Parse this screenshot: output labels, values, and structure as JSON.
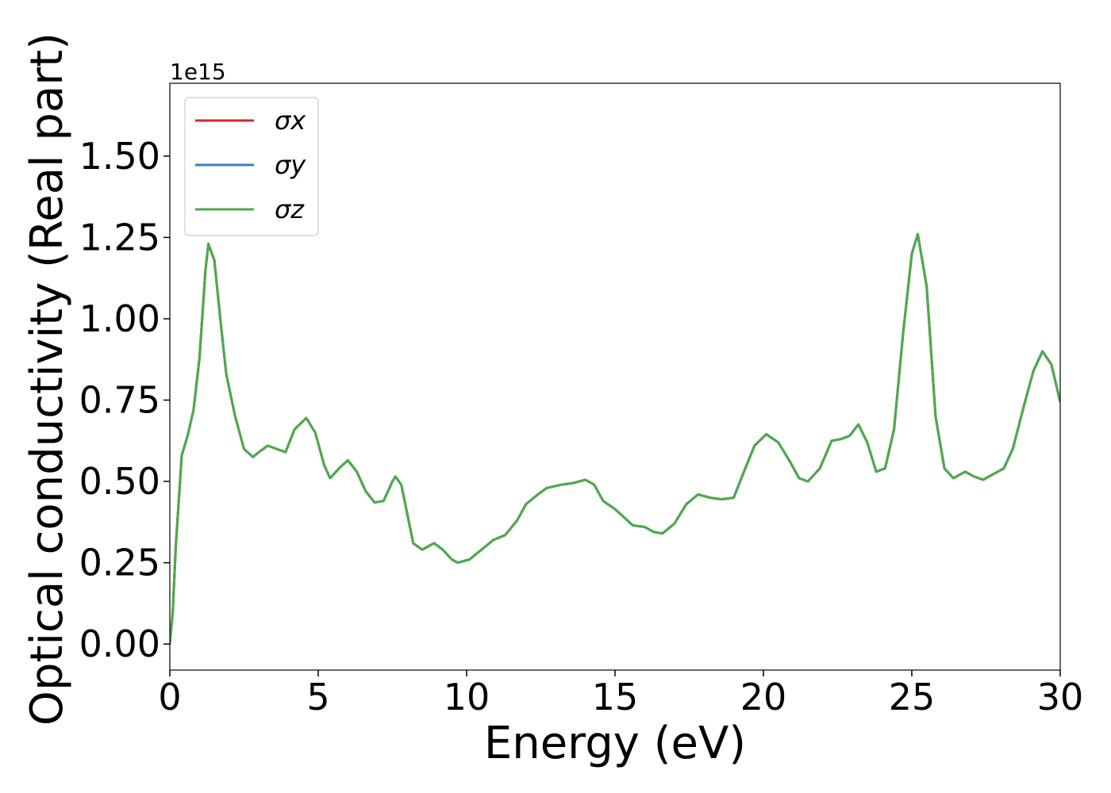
{
  "chart_data": {
    "type": "line",
    "x_label": "Energy (eV)",
    "y_label": "Optical conductivity (Real part)",
    "y_offset_label": "1e15",
    "x": [
      0,
      0.1,
      0.2,
      0.4,
      0.6,
      0.8,
      1.0,
      1.2,
      1.3,
      1.5,
      1.7,
      1.9,
      2.2,
      2.5,
      2.8,
      3.0,
      3.3,
      3.6,
      3.9,
      4.2,
      4.6,
      4.9,
      5.2,
      5.4,
      5.7,
      6.0,
      6.3,
      6.6,
      6.9,
      7.2,
      7.5,
      7.6,
      7.8,
      8.0,
      8.2,
      8.5,
      8.9,
      9.2,
      9.5,
      9.7,
      10.1,
      10.5,
      10.9,
      11.3,
      11.7,
      12.0,
      12.4,
      12.7,
      13.2,
      13.6,
      14.0,
      14.3,
      14.6,
      15.0,
      15.3,
      15.6,
      16.0,
      16.3,
      16.6,
      17.0,
      17.4,
      17.8,
      18.2,
      18.6,
      19.0,
      19.3,
      19.7,
      20.1,
      20.5,
      20.9,
      21.2,
      21.5,
      21.9,
      22.3,
      22.6,
      22.9,
      23.2,
      23.5,
      23.8,
      24.1,
      24.4,
      24.7,
      25.0,
      25.2,
      25.5,
      25.8,
      26.1,
      26.4,
      26.8,
      27.1,
      27.4,
      27.8,
      28.1,
      28.4,
      28.8,
      29.1,
      29.4,
      29.7,
      30.0
    ],
    "series": [
      {
        "name": "σx",
        "color": "#d62728",
        "values": [
          0.0,
          0.1,
          0.3,
          0.58,
          0.64,
          0.72,
          0.88,
          1.15,
          1.23,
          1.18,
          1.0,
          0.83,
          0.7,
          0.6,
          0.575,
          0.59,
          0.61,
          0.6,
          0.59,
          0.66,
          0.695,
          0.65,
          0.55,
          0.51,
          0.54,
          0.565,
          0.53,
          0.47,
          0.435,
          0.44,
          0.5,
          0.515,
          0.49,
          0.4,
          0.31,
          0.29,
          0.31,
          0.29,
          0.26,
          0.25,
          0.26,
          0.29,
          0.32,
          0.335,
          0.38,
          0.43,
          0.46,
          0.48,
          0.49,
          0.495,
          0.505,
          0.49,
          0.44,
          0.415,
          0.39,
          0.365,
          0.36,
          0.345,
          0.34,
          0.37,
          0.43,
          0.46,
          0.45,
          0.445,
          0.45,
          0.52,
          0.61,
          0.645,
          0.62,
          0.56,
          0.51,
          0.5,
          0.54,
          0.625,
          0.63,
          0.64,
          0.675,
          0.62,
          0.53,
          0.54,
          0.66,
          0.95,
          1.2,
          1.26,
          1.1,
          0.7,
          0.54,
          0.51,
          0.53,
          0.515,
          0.505,
          0.525,
          0.54,
          0.6,
          0.74,
          0.84,
          0.9,
          0.86,
          0.745
        ]
      },
      {
        "name": "σy",
        "color": "#3a7dbd",
        "values": [
          0.0,
          0.1,
          0.3,
          0.58,
          0.64,
          0.72,
          0.88,
          1.15,
          1.23,
          1.18,
          1.0,
          0.83,
          0.7,
          0.6,
          0.575,
          0.59,
          0.61,
          0.6,
          0.59,
          0.66,
          0.695,
          0.65,
          0.55,
          0.51,
          0.54,
          0.565,
          0.53,
          0.47,
          0.435,
          0.44,
          0.5,
          0.515,
          0.49,
          0.4,
          0.31,
          0.29,
          0.31,
          0.29,
          0.26,
          0.25,
          0.26,
          0.29,
          0.32,
          0.335,
          0.38,
          0.43,
          0.46,
          0.48,
          0.49,
          0.495,
          0.505,
          0.49,
          0.44,
          0.415,
          0.39,
          0.365,
          0.36,
          0.345,
          0.34,
          0.37,
          0.43,
          0.46,
          0.45,
          0.445,
          0.45,
          0.52,
          0.61,
          0.645,
          0.62,
          0.56,
          0.51,
          0.5,
          0.54,
          0.625,
          0.63,
          0.64,
          0.675,
          0.62,
          0.53,
          0.54,
          0.66,
          0.95,
          1.2,
          1.26,
          1.1,
          0.7,
          0.54,
          0.51,
          0.53,
          0.515,
          0.505,
          0.525,
          0.54,
          0.6,
          0.74,
          0.84,
          0.9,
          0.86,
          0.745
        ]
      },
      {
        "name": "σz",
        "color": "#4dab4a",
        "values": [
          0.0,
          0.1,
          0.3,
          0.58,
          0.64,
          0.72,
          0.88,
          1.15,
          1.23,
          1.18,
          1.0,
          0.83,
          0.7,
          0.6,
          0.575,
          0.59,
          0.61,
          0.6,
          0.59,
          0.66,
          0.695,
          0.65,
          0.55,
          0.51,
          0.54,
          0.565,
          0.53,
          0.47,
          0.435,
          0.44,
          0.5,
          0.515,
          0.49,
          0.4,
          0.31,
          0.29,
          0.31,
          0.29,
          0.26,
          0.25,
          0.26,
          0.29,
          0.32,
          0.335,
          0.38,
          0.43,
          0.46,
          0.48,
          0.49,
          0.495,
          0.505,
          0.49,
          0.44,
          0.415,
          0.39,
          0.365,
          0.36,
          0.345,
          0.34,
          0.37,
          0.43,
          0.46,
          0.45,
          0.445,
          0.45,
          0.52,
          0.61,
          0.645,
          0.62,
          0.56,
          0.51,
          0.5,
          0.54,
          0.625,
          0.63,
          0.64,
          0.675,
          0.62,
          0.53,
          0.54,
          0.66,
          0.95,
          1.2,
          1.26,
          1.1,
          0.7,
          0.54,
          0.51,
          0.53,
          0.515,
          0.505,
          0.525,
          0.54,
          0.6,
          0.74,
          0.84,
          0.9,
          0.86,
          0.745
        ]
      }
    ],
    "xlim": [
      0,
      30
    ],
    "xticks": [
      0,
      5,
      10,
      15,
      20,
      25,
      30
    ],
    "ylim": [
      -0.08,
      1.724
    ],
    "yticks": [
      {
        "value": 0,
        "label": "0.00"
      },
      {
        "value": 0.25,
        "label": "0.25"
      },
      {
        "value": 0.5,
        "label": "0.50"
      },
      {
        "value": 0.75,
        "label": "0.75"
      },
      {
        "value": 1.0,
        "label": "1.00"
      },
      {
        "value": 1.25,
        "label": "1.25"
      },
      {
        "value": 1.5,
        "label": "1.50"
      }
    ],
    "legend": "upper left",
    "grid": false
  }
}
